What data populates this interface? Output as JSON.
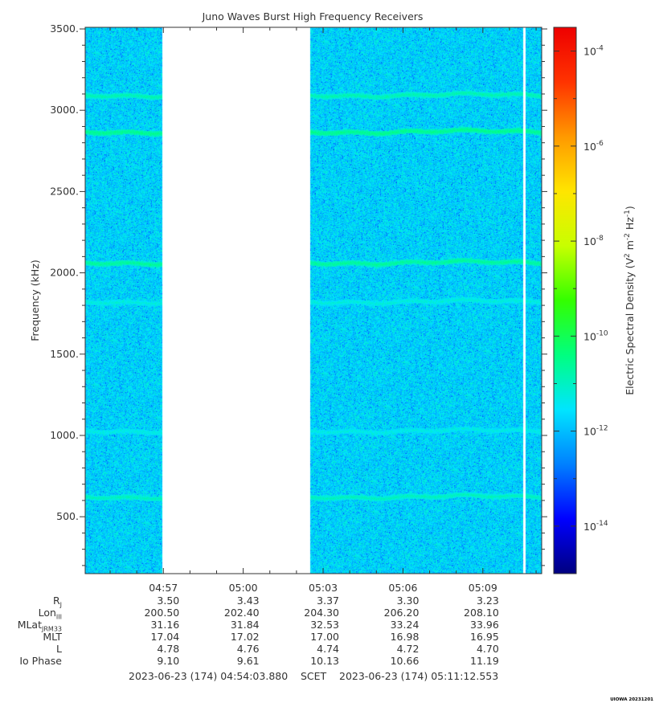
{
  "chart_data": {
    "type": "heatmap",
    "title": "Juno Waves Burst High Frequency Receivers",
    "ylabel": "Frequency (kHz)",
    "ylim": [
      150,
      3510
    ],
    "yticks": [
      500,
      1000,
      1500,
      2000,
      2500,
      3000,
      3500
    ],
    "ytick_labels": [
      "500.",
      "1000.",
      "1500.",
      "2000.",
      "2500.",
      "3000.",
      "3500."
    ],
    "xlim": [
      "04:54:03.880",
      "05:11:12.553"
    ],
    "xticks": [
      "04:57",
      "05:00",
      "05:03",
      "05:06",
      "05:09"
    ],
    "data_gaps": [
      [
        "04:56:57",
        "05:02:30"
      ],
      [
        "05:10:30",
        "05:10:35"
      ]
    ],
    "background_level_log10": -11.7,
    "emission_lines": [
      {
        "freq_khz": 3095,
        "log10_level": -10.8
      },
      {
        "freq_khz": 2870,
        "log10_level": -10.5
      },
      {
        "freq_khz": 2065,
        "log10_level": -10.6
      },
      {
        "freq_khz": 1825,
        "log10_level": -11.2
      },
      {
        "freq_khz": 1030,
        "log10_level": -11.3
      },
      {
        "freq_khz": 625,
        "log10_level": -10.9
      }
    ],
    "colorbar": {
      "label": "Electric Spectral Density (V² m⁻² Hz⁻¹)",
      "label_base": "Electric Spectral Density (V",
      "label_exp1": "2",
      "label_mid": " m",
      "label_exp2": "-2",
      "label_mid2": " Hz",
      "label_exp3": "-1",
      "label_end": ")",
      "scale": "log",
      "range_log10": [
        -15,
        -3.5
      ],
      "tick_exponents": [
        -4,
        -6,
        -8,
        -10,
        -12,
        -14
      ],
      "tick_base": "10",
      "tick_exp_labels": [
        "-4",
        "-6",
        "-8",
        "-10",
        "-12",
        "-14"
      ],
      "colormap": [
        "#00007f",
        "#0000ff",
        "#0080ff",
        "#00e5ff",
        "#00ff80",
        "#33ff00",
        "#c8ff00",
        "#ffe500",
        "#ff9900",
        "#ff3300",
        "#ee0000"
      ]
    }
  },
  "ephemeris": {
    "rows": [
      {
        "label": "R",
        "sub": "J",
        "values": [
          "3.50",
          "3.43",
          "3.37",
          "3.30",
          "3.23"
        ]
      },
      {
        "label": "Lon",
        "sub": "III",
        "values": [
          "200.50",
          "202.40",
          "204.30",
          "206.20",
          "208.10"
        ]
      },
      {
        "label": "MLat",
        "sub": "JRM33",
        "values": [
          "31.16",
          "31.84",
          "32.53",
          "33.24",
          "33.96"
        ]
      },
      {
        "label": "MLT",
        "sub": "",
        "values": [
          "17.04",
          "17.02",
          "17.00",
          "16.98",
          "16.95"
        ]
      },
      {
        "label": "L",
        "sub": "",
        "values": [
          "4.78",
          "4.76",
          "4.74",
          "4.72",
          "4.70"
        ]
      },
      {
        "label": "Io Phase",
        "sub": "",
        "values": [
          "9.10",
          "9.61",
          "10.13",
          "10.66",
          "11.19"
        ]
      }
    ]
  },
  "footer": {
    "start": "2023-06-23 (174) 04:54:03.880",
    "scet": "SCET",
    "end": "2023-06-23 (174) 05:11:12.553",
    "stamp": "UIOWA 20231201"
  }
}
